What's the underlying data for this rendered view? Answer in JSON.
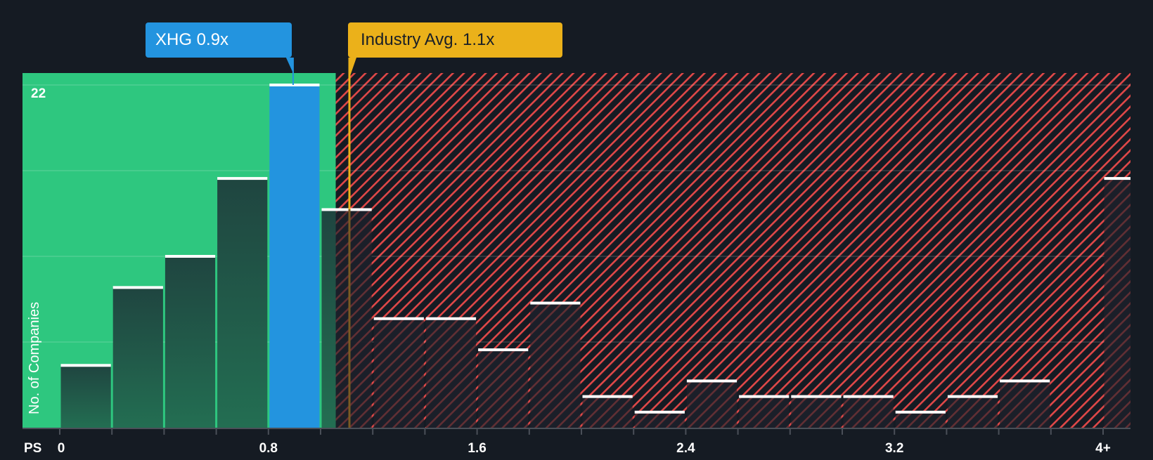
{
  "chart_data": {
    "type": "bar",
    "title": "",
    "xlabel": "PS",
    "ylabel": "No. of Companies",
    "x_tick_labels": [
      "0",
      "0.8",
      "1.6",
      "2.4",
      "3.2",
      "4+"
    ],
    "y_tick_labels": [
      "22"
    ],
    "ylim": [
      0,
      22
    ],
    "grid": true,
    "bin_width": 0.2,
    "categories": [
      "0-0.2",
      "0.2-0.4",
      "0.4-0.6",
      "0.6-0.8",
      "0.8-1.0",
      "1.0-1.2",
      "1.2-1.4",
      "1.4-1.6",
      "1.6-1.8",
      "1.8-2.0",
      "2.0-2.2",
      "2.2-2.4",
      "2.4-2.6",
      "2.6-2.8",
      "2.8-3.0",
      "3.0-3.2",
      "3.2-3.4",
      "3.4-3.6",
      "3.6-3.8",
      "3.8-4.0",
      "4+"
    ],
    "values": [
      4,
      9,
      11,
      16,
      22,
      14,
      7,
      7,
      5,
      8,
      2,
      1,
      3,
      2,
      2,
      2,
      1,
      2,
      3,
      0,
      16
    ],
    "highlighted_bin_index": 4,
    "company": {
      "ticker": "XHG",
      "value": 0.9,
      "label": "XHG 0.9x"
    },
    "industry_average": {
      "value": 1.1,
      "label": "Industry Avg. 1.1x"
    },
    "undervalued_zone_max": 1.05
  },
  "colors": {
    "background": "#151b23",
    "undervalued_zone": "#2ec77f",
    "overvalued_hatch": "#e04848",
    "company_bar": "#2394df",
    "industry_line": "#ebb11a",
    "bar_fill_dark": "#1f4a3f",
    "bar_cap": "#ffffff"
  }
}
